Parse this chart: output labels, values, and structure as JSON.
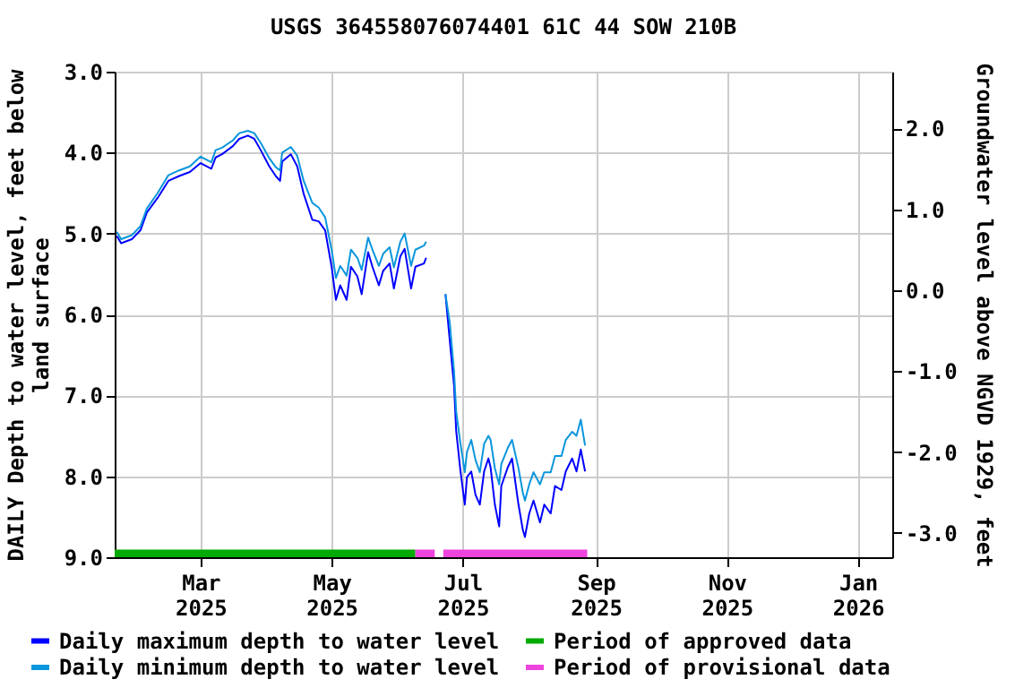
{
  "chart_data": {
    "type": "line",
    "title": "USGS 364558076074401 61C 44 SOW 210B",
    "ylabel": "DAILY Depth to water level, feet below land surface",
    "y2label": "Groundwater level above NGVD 1929, feet",
    "xlim": [
      "2025-01-20",
      "2026-01-17"
    ],
    "xticks": [
      {
        "value": "2025-03-01",
        "label": "Mar 2025"
      },
      {
        "value": "2025-05-01",
        "label": "May 2025"
      },
      {
        "value": "2025-07-01",
        "label": "Jul 2025"
      },
      {
        "value": "2025-09-01",
        "label": "Sep 2025"
      },
      {
        "value": "2025-11-01",
        "label": "Nov 2025"
      },
      {
        "value": "2026-01-01",
        "label": "Jan 2026"
      }
    ],
    "ylim": [
      9.0,
      3.0
    ],
    "yticks": [
      {
        "value": 3,
        "label": "3.0"
      },
      {
        "value": 4,
        "label": "4.0"
      },
      {
        "value": 5,
        "label": "5.0"
      },
      {
        "value": 6,
        "label": "6.0"
      },
      {
        "value": 7,
        "label": "7.0"
      },
      {
        "value": 8,
        "label": "8.0"
      },
      {
        "value": 9,
        "label": "9.0"
      }
    ],
    "y2lim": [
      -3.3,
      2.7
    ],
    "y2ticks": [
      {
        "value": 2,
        "label": "2.0"
      },
      {
        "value": 1,
        "label": "1.0"
      },
      {
        "value": 0,
        "label": "0.0"
      },
      {
        "value": -1,
        "label": "-1.0"
      },
      {
        "value": -2,
        "label": "-2.0"
      },
      {
        "value": -3,
        "label": "-3.0"
      }
    ],
    "grid": true,
    "legend": "bottom",
    "x": [
      "2025-01-21",
      "2025-01-23",
      "2025-01-28",
      "2025-02-01",
      "2025-02-04",
      "2025-02-09",
      "2025-02-14",
      "2025-02-19",
      "2025-02-24",
      "2025-03-01",
      "2025-03-06",
      "2025-03-08",
      "2025-03-11",
      "2025-03-16",
      "2025-03-19",
      "2025-03-23",
      "2025-03-26",
      "2025-03-29",
      "2025-04-02",
      "2025-04-05",
      "2025-04-07",
      "2025-04-08",
      "2025-04-12",
      "2025-04-15",
      "2025-04-18",
      "2025-04-22",
      "2025-04-25",
      "2025-04-28",
      "2025-05-01",
      "2025-05-03",
      "2025-05-05",
      "2025-05-08",
      "2025-05-10",
      "2025-05-13",
      "2025-05-15",
      "2025-05-18",
      "2025-05-20",
      "2025-05-23",
      "2025-05-25",
      "2025-05-28",
      "2025-05-30",
      "2025-06-02",
      "2025-06-04",
      "2025-06-07",
      "2025-06-09",
      "2025-06-13",
      "2025-06-14",
      "2025-06-18",
      "2025-06-23",
      "2025-06-25",
      "2025-06-27",
      "2025-06-28",
      "2025-06-30",
      "2025-07-02",
      "2025-07-03",
      "2025-07-05",
      "2025-07-07",
      "2025-07-09",
      "2025-07-11",
      "2025-07-13",
      "2025-07-14",
      "2025-07-16",
      "2025-07-18",
      "2025-07-19",
      "2025-07-22",
      "2025-07-24",
      "2025-07-27",
      "2025-07-29",
      "2025-07-30",
      "2025-08-01",
      "2025-08-03",
      "2025-08-06",
      "2025-08-08",
      "2025-08-11",
      "2025-08-13",
      "2025-08-16",
      "2025-08-18",
      "2025-08-21",
      "2025-08-23",
      "2025-08-25",
      "2025-08-27"
    ],
    "series": [
      {
        "name": "Daily maximum depth to water level",
        "color": "#0000ff",
        "values": [
          5.03,
          5.12,
          5.07,
          4.96,
          4.74,
          4.56,
          4.35,
          4.29,
          4.24,
          4.13,
          4.2,
          4.06,
          4.02,
          3.92,
          3.83,
          3.79,
          3.83,
          3.97,
          4.17,
          4.29,
          4.35,
          4.11,
          4.02,
          4.17,
          4.51,
          4.83,
          4.85,
          4.96,
          5.41,
          5.82,
          5.64,
          5.82,
          5.41,
          5.53,
          5.75,
          5.23,
          5.41,
          5.64,
          5.46,
          5.37,
          5.68,
          5.28,
          5.19,
          5.68,
          5.41,
          5.37,
          5.3,
          null,
          5.75,
          6.32,
          6.88,
          7.44,
          7.94,
          8.35,
          8.01,
          7.94,
          8.23,
          8.35,
          7.94,
          7.78,
          7.89,
          8.35,
          8.62,
          8.12,
          7.89,
          7.78,
          8.35,
          8.66,
          8.75,
          8.46,
          8.3,
          8.57,
          8.35,
          8.46,
          8.12,
          8.17,
          7.94,
          7.78,
          7.94,
          7.67,
          7.94
        ]
      },
      {
        "name": "Daily minimum depth to water level",
        "color": "#0a96dc",
        "values": [
          4.98,
          5.07,
          5.02,
          4.91,
          4.69,
          4.5,
          4.28,
          4.22,
          4.17,
          4.05,
          4.12,
          3.97,
          3.94,
          3.85,
          3.76,
          3.73,
          3.76,
          3.88,
          4.07,
          4.18,
          4.22,
          4.0,
          3.93,
          4.04,
          4.35,
          4.62,
          4.68,
          4.8,
          5.2,
          5.55,
          5.4,
          5.52,
          5.2,
          5.3,
          5.45,
          5.05,
          5.2,
          5.4,
          5.25,
          5.17,
          5.42,
          5.1,
          5.0,
          5.4,
          5.2,
          5.15,
          5.1,
          null,
          5.75,
          6.1,
          6.7,
          7.2,
          7.6,
          7.95,
          7.7,
          7.55,
          7.8,
          7.95,
          7.6,
          7.5,
          7.55,
          7.9,
          8.1,
          7.85,
          7.65,
          7.55,
          7.9,
          8.2,
          8.3,
          8.1,
          7.95,
          8.1,
          7.95,
          7.95,
          7.75,
          7.75,
          7.55,
          7.45,
          7.5,
          7.3,
          7.62
        ]
      },
      {
        "name": "Period of approved data",
        "color": "#00aa00",
        "x": [
          "2025-01-20",
          "2025-06-09"
        ],
        "values": [
          8.96,
          8.96
        ]
      },
      {
        "name": "Period of provisional data",
        "color": "#ee44dd",
        "x": [
          "2025-06-09",
          "2025-06-18",
          "2025-06-20",
          "2025-06-22",
          "2025-08-28"
        ],
        "values": [
          8.96,
          8.96,
          null,
          8.96,
          8.96
        ]
      }
    ]
  }
}
